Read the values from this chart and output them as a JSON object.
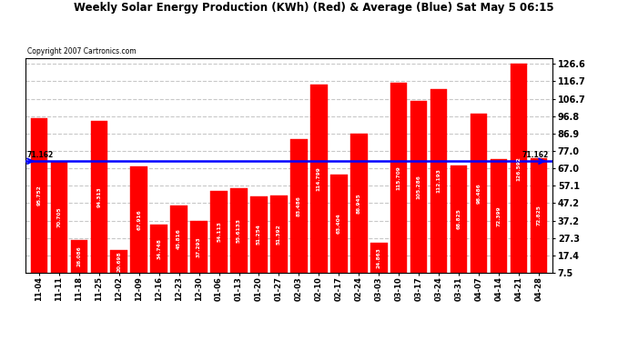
{
  "title": "Weekly Solar Energy Production (KWh) (Red) & Average (Blue) Sat May 5 06:15",
  "copyright": "Copyright 2007 Cartronics.com",
  "average": 71.162,
  "bar_color": "#ff0000",
  "avg_line_color": "#0000ff",
  "background_color": "#ffffff",
  "plot_bg_color": "#ffffff",
  "grid_color": "#c8c8c8",
  "categories": [
    "11-04",
    "11-11",
    "11-18",
    "11-25",
    "12-02",
    "12-09",
    "12-16",
    "12-23",
    "12-30",
    "01-06",
    "01-13",
    "01-20",
    "01-27",
    "02-03",
    "02-10",
    "02-17",
    "02-24",
    "03-03",
    "03-10",
    "03-17",
    "03-24",
    "03-31",
    "04-07",
    "04-14",
    "04-21",
    "04-28"
  ],
  "values": [
    95.752,
    70.705,
    26.086,
    94.313,
    20.698,
    67.916,
    34.748,
    45.816,
    37.293,
    54.113,
    55.6133,
    51.254,
    51.392,
    83.486,
    114.799,
    63.404,
    86.945,
    24.863,
    115.709,
    105.286,
    112.193,
    68.825,
    98.486,
    72.399,
    126.592,
    72.825
  ],
  "yticks": [
    7.5,
    17.4,
    27.3,
    37.2,
    47.2,
    57.1,
    67.0,
    77.0,
    86.9,
    96.8,
    106.7,
    116.7,
    126.6
  ],
  "ymin": 7.5,
  "ymax": 130,
  "avg_label": "71.162",
  "value_labels": [
    "95.752",
    "70.705",
    "26.086",
    "94.313",
    "20.698",
    "67.916",
    "34.748",
    "45.816",
    "37.293",
    "54.113",
    "55.6133",
    "51.254",
    "51.392",
    "83.486",
    "114.799",
    "63.404",
    "86.945",
    "24.863",
    "115.709",
    "105.286",
    "112.193",
    "68.825",
    "98.486",
    "72.399",
    "126.592",
    "72.825"
  ]
}
